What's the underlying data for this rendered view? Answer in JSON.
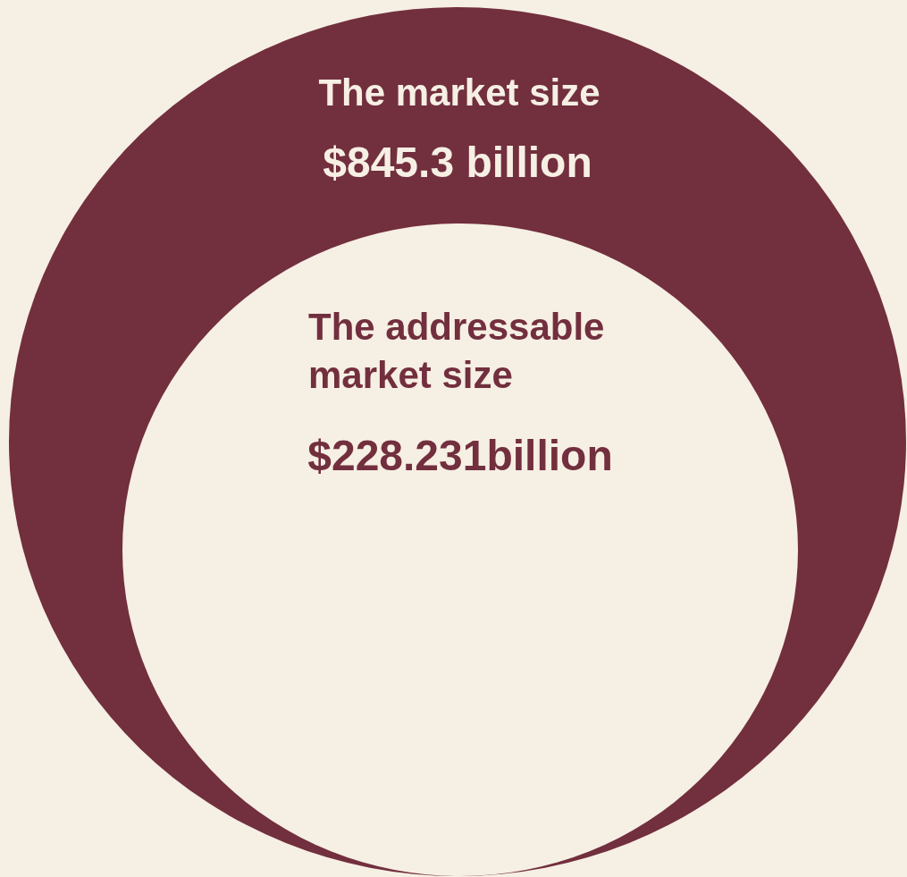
{
  "chart_data": {
    "type": "other",
    "categories": [
      "The market size",
      "The addressable market size"
    ],
    "values": [
      845.3,
      228.231
    ],
    "value_labels": [
      "$845.3 billion",
      "$228.231billion"
    ],
    "colors": [
      "#722f3e",
      "#f6efe4"
    ]
  }
}
